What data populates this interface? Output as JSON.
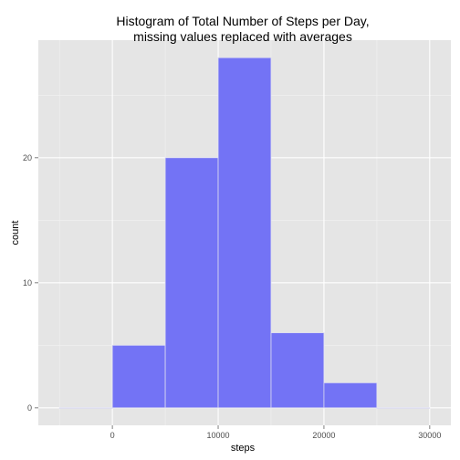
{
  "chart_data": {
    "type": "bar",
    "title_lines": [
      "Histogram of Total Number of Steps per Day,",
      "missing values replaced with averages"
    ],
    "xlabel": "steps",
    "ylabel": "count",
    "bins": [
      {
        "x0": -5000,
        "x1": 0,
        "count": 0
      },
      {
        "x0": 0,
        "x1": 5000,
        "count": 5
      },
      {
        "x0": 5000,
        "x1": 10000,
        "count": 20
      },
      {
        "x0": 10000,
        "x1": 15000,
        "count": 28
      },
      {
        "x0": 15000,
        "x1": 20000,
        "count": 6
      },
      {
        "x0": 20000,
        "x1": 25000,
        "count": 2
      },
      {
        "x0": 25000,
        "x1": 30000,
        "count": 0
      }
    ],
    "xlim": [
      -7000,
      32000
    ],
    "ylim": [
      -1.4,
      29.4
    ],
    "x_ticks": [
      0,
      10000,
      20000,
      30000
    ],
    "x_tick_labels": [
      "0",
      "10000",
      "20000",
      "30000"
    ],
    "y_ticks": [
      0,
      10,
      20
    ],
    "y_tick_labels": [
      "0",
      "10",
      "20"
    ],
    "grid": true,
    "panel_color": "#e5e5e5",
    "grid_color": "#ffffff",
    "bar_fill": "#7373f5",
    "bar_outline": "#dcdcf0"
  }
}
